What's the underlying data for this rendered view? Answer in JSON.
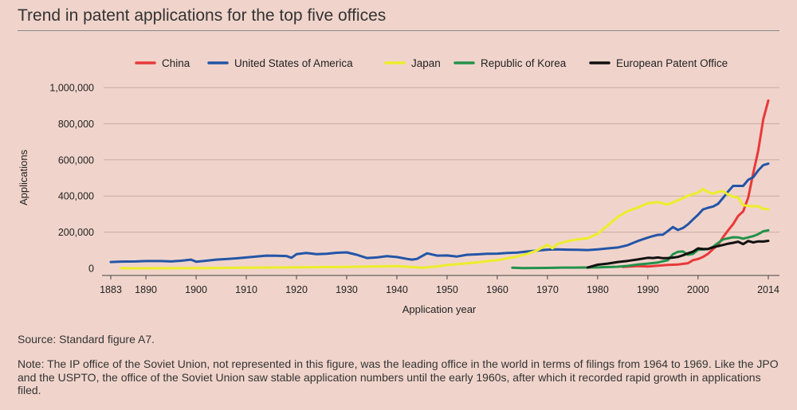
{
  "title": "Trend in patent applications for the top five offices",
  "source": "Source: Standard figure A7.",
  "note": "Note: The IP office of the Soviet Union, not represented in this figure, was the leading office in the world in terms of filings from 1964 to 1969. Like the JPO and the USPTO, the office of the Soviet Union saw stable application numbers until the early 1960s, after which it recorded rapid growth in applications filed.",
  "chart_data": {
    "type": "line",
    "xlabel": "Application year",
    "ylabel": "Applications",
    "xlim": [
      1883,
      2014
    ],
    "ylim": [
      0,
      1000000
    ],
    "xticks": [
      1883,
      1890,
      1900,
      1910,
      1920,
      1930,
      1940,
      1950,
      1960,
      1970,
      1980,
      1990,
      2000,
      2014
    ],
    "yticks": [
      0,
      200000,
      400000,
      600000,
      800000,
      1000000
    ],
    "ytick_labels": [
      "0",
      "200,000",
      "400,000",
      "600,000",
      "800,000",
      "1,000,000"
    ],
    "grid": true,
    "legend_position": "top",
    "series": [
      {
        "name": "China",
        "color": "#e8393a",
        "points": [
          [
            1985,
            8000
          ],
          [
            1988,
            12000
          ],
          [
            1990,
            10000
          ],
          [
            1992,
            14000
          ],
          [
            1994,
            19000
          ],
          [
            1996,
            21000
          ],
          [
            1998,
            28000
          ],
          [
            1999,
            45000
          ],
          [
            2000,
            51000
          ],
          [
            2001,
            63000
          ],
          [
            2002,
            80000
          ],
          [
            2003,
            106000
          ],
          [
            2004,
            130000
          ],
          [
            2005,
            173000
          ],
          [
            2006,
            210000
          ],
          [
            2007,
            245000
          ],
          [
            2008,
            290000
          ],
          [
            2009,
            315000
          ],
          [
            2010,
            391000
          ],
          [
            2011,
            526000
          ],
          [
            2012,
            652000
          ],
          [
            2013,
            825000
          ],
          [
            2014,
            928000
          ]
        ]
      },
      {
        "name": "United States of America",
        "color": "#2355a7",
        "points": [
          [
            1883,
            35000
          ],
          [
            1885,
            37000
          ],
          [
            1888,
            38000
          ],
          [
            1890,
            40000
          ],
          [
            1893,
            40000
          ],
          [
            1895,
            38000
          ],
          [
            1897,
            42000
          ],
          [
            1899,
            48000
          ],
          [
            1900,
            36000
          ],
          [
            1902,
            42000
          ],
          [
            1904,
            48000
          ],
          [
            1906,
            51000
          ],
          [
            1908,
            55000
          ],
          [
            1910,
            60000
          ],
          [
            1912,
            65000
          ],
          [
            1914,
            70000
          ],
          [
            1916,
            69000
          ],
          [
            1918,
            68000
          ],
          [
            1919,
            58000
          ],
          [
            1920,
            78000
          ],
          [
            1922,
            85000
          ],
          [
            1924,
            78000
          ],
          [
            1926,
            80000
          ],
          [
            1928,
            86000
          ],
          [
            1930,
            88000
          ],
          [
            1932,
            75000
          ],
          [
            1934,
            57000
          ],
          [
            1936,
            60000
          ],
          [
            1938,
            67000
          ],
          [
            1940,
            62000
          ],
          [
            1942,
            52000
          ],
          [
            1943,
            48000
          ],
          [
            1944,
            52000
          ],
          [
            1946,
            83000
          ],
          [
            1948,
            70000
          ],
          [
            1950,
            71000
          ],
          [
            1952,
            65000
          ],
          [
            1954,
            75000
          ],
          [
            1956,
            77000
          ],
          [
            1958,
            80000
          ],
          [
            1960,
            81000
          ],
          [
            1962,
            85000
          ],
          [
            1964,
            87000
          ],
          [
            1966,
            93000
          ],
          [
            1968,
            98000
          ],
          [
            1970,
            103000
          ],
          [
            1972,
            105000
          ],
          [
            1974,
            103000
          ],
          [
            1976,
            102000
          ],
          [
            1978,
            101000
          ],
          [
            1980,
            105000
          ],
          [
            1982,
            110000
          ],
          [
            1984,
            115000
          ],
          [
            1986,
            128000
          ],
          [
            1988,
            151000
          ],
          [
            1990,
            170000
          ],
          [
            1991,
            178000
          ],
          [
            1992,
            185000
          ],
          [
            1993,
            186000
          ],
          [
            1994,
            206000
          ],
          [
            1995,
            228000
          ],
          [
            1996,
            212000
          ],
          [
            1997,
            223000
          ],
          [
            1998,
            243000
          ],
          [
            1999,
            270000
          ],
          [
            2000,
            296000
          ],
          [
            2001,
            326000
          ],
          [
            2002,
            335000
          ],
          [
            2003,
            342000
          ],
          [
            2004,
            357000
          ],
          [
            2005,
            390000
          ],
          [
            2006,
            425000
          ],
          [
            2007,
            456000
          ],
          [
            2008,
            456000
          ],
          [
            2009,
            456000
          ],
          [
            2010,
            490000
          ],
          [
            2011,
            504000
          ],
          [
            2012,
            542000
          ],
          [
            2013,
            571000
          ],
          [
            2014,
            579000
          ]
        ]
      },
      {
        "name": "Japan",
        "color": "#eded2a",
        "points": [
          [
            1885,
            0
          ],
          [
            1890,
            0
          ],
          [
            1900,
            1000
          ],
          [
            1910,
            3000
          ],
          [
            1920,
            5000
          ],
          [
            1930,
            8000
          ],
          [
            1940,
            12000
          ],
          [
            1945,
            3000
          ],
          [
            1948,
            10000
          ],
          [
            1950,
            18000
          ],
          [
            1955,
            30000
          ],
          [
            1960,
            45000
          ],
          [
            1962,
            55000
          ],
          [
            1964,
            65000
          ],
          [
            1966,
            80000
          ],
          [
            1968,
            100000
          ],
          [
            1970,
            130000
          ],
          [
            1971,
            110000
          ],
          [
            1972,
            135000
          ],
          [
            1974,
            150000
          ],
          [
            1976,
            160000
          ],
          [
            1978,
            166000
          ],
          [
            1980,
            191000
          ],
          [
            1982,
            237000
          ],
          [
            1984,
            284000
          ],
          [
            1986,
            317000
          ],
          [
            1988,
            336000
          ],
          [
            1990,
            360000
          ],
          [
            1992,
            366000
          ],
          [
            1994,
            353000
          ],
          [
            1996,
            376000
          ],
          [
            1998,
            401000
          ],
          [
            2000,
            419000
          ],
          [
            2001,
            439000
          ],
          [
            2002,
            421000
          ],
          [
            2003,
            413000
          ],
          [
            2004,
            423000
          ],
          [
            2005,
            427000
          ],
          [
            2006,
            408000
          ],
          [
            2007,
            396000
          ],
          [
            2008,
            391000
          ],
          [
            2009,
            349000
          ],
          [
            2010,
            345000
          ],
          [
            2011,
            343000
          ],
          [
            2012,
            343000
          ],
          [
            2013,
            329000
          ],
          [
            2014,
            326000
          ]
        ]
      },
      {
        "name": "Republic of Korea",
        "color": "#22924a",
        "points": [
          [
            1963,
            3000
          ],
          [
            1965,
            1000
          ],
          [
            1970,
            2000
          ],
          [
            1973,
            4000
          ],
          [
            1975,
            4000
          ],
          [
            1980,
            5000
          ],
          [
            1984,
            9000
          ],
          [
            1986,
            13000
          ],
          [
            1988,
            21000
          ],
          [
            1990,
            26000
          ],
          [
            1992,
            32000
          ],
          [
            1994,
            45000
          ],
          [
            1995,
            78000
          ],
          [
            1996,
            91000
          ],
          [
            1997,
            93000
          ],
          [
            1998,
            75000
          ],
          [
            1999,
            80000
          ],
          [
            2000,
            102000
          ],
          [
            2001,
            104000
          ],
          [
            2002,
            106000
          ],
          [
            2003,
            119000
          ],
          [
            2004,
            140000
          ],
          [
            2005,
            160000
          ],
          [
            2006,
            166000
          ],
          [
            2007,
            172000
          ],
          [
            2008,
            171000
          ],
          [
            2009,
            164000
          ],
          [
            2010,
            171000
          ],
          [
            2011,
            178000
          ],
          [
            2012,
            189000
          ],
          [
            2013,
            205000
          ],
          [
            2014,
            210000
          ]
        ]
      },
      {
        "name": "European Patent Office",
        "color": "#111111",
        "points": [
          [
            1978,
            4000
          ],
          [
            1980,
            20000
          ],
          [
            1982,
            26000
          ],
          [
            1984,
            35000
          ],
          [
            1986,
            41000
          ],
          [
            1988,
            49000
          ],
          [
            1990,
            58000
          ],
          [
            1991,
            57000
          ],
          [
            1992,
            60000
          ],
          [
            1993,
            56000
          ],
          [
            1994,
            57000
          ],
          [
            1995,
            59000
          ],
          [
            1996,
            63000
          ],
          [
            1997,
            72000
          ],
          [
            1998,
            83000
          ],
          [
            1999,
            92000
          ],
          [
            2000,
            110000
          ],
          [
            2001,
            107000
          ],
          [
            2002,
            107000
          ],
          [
            2003,
            116000
          ],
          [
            2004,
            123000
          ],
          [
            2005,
            129000
          ],
          [
            2006,
            136000
          ],
          [
            2007,
            141000
          ],
          [
            2008,
            147000
          ],
          [
            2009,
            134000
          ],
          [
            2010,
            151000
          ],
          [
            2011,
            143000
          ],
          [
            2012,
            149000
          ],
          [
            2013,
            148000
          ],
          [
            2014,
            152000
          ]
        ]
      }
    ]
  }
}
